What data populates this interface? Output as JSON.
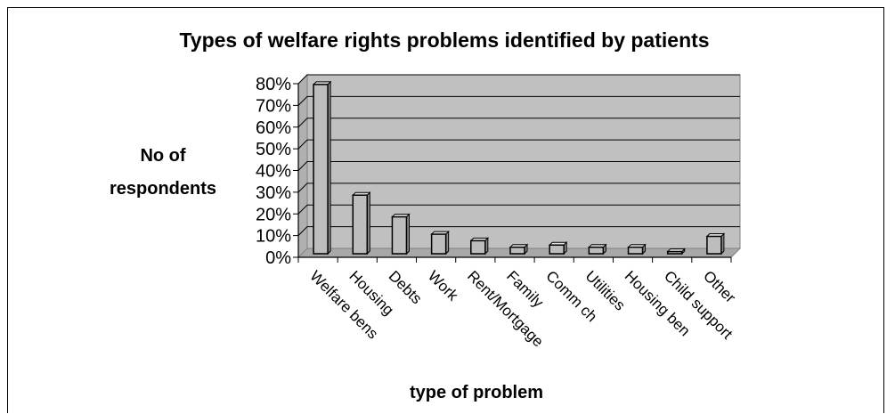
{
  "chart_data": {
    "type": "bar",
    "title": "Types of welfare rights problems identified by patients",
    "ylabel_lines": [
      "No of",
      "respondents"
    ],
    "xlabel": "type of problem",
    "categories": [
      "Welfare bens",
      "Housing",
      "Debts",
      "Work",
      "Rent/Mortgage",
      "Family",
      "Comm ch",
      "Utilities",
      "Housing ben",
      "Child support",
      "Other"
    ],
    "values": [
      78,
      27,
      17,
      9,
      6,
      3,
      4,
      3,
      3,
      1,
      8
    ],
    "value_unit": "%",
    "ylim": [
      0,
      80
    ],
    "yticks": [
      0,
      10,
      20,
      30,
      40,
      50,
      60,
      70,
      80
    ],
    "ytick_labels": [
      "0%",
      "10%",
      "20%",
      "30%",
      "40%",
      "50%",
      "60%",
      "70%",
      "80%"
    ],
    "grid": true,
    "legend": false,
    "colors": {
      "bar_fill": "#bdbdbd",
      "bar_side": "#8a8a8a",
      "bar_top": "#dedede",
      "plot_back": "#c0c0c0",
      "plot_floor": "#a8a8a8",
      "gridline": "#000000"
    }
  }
}
